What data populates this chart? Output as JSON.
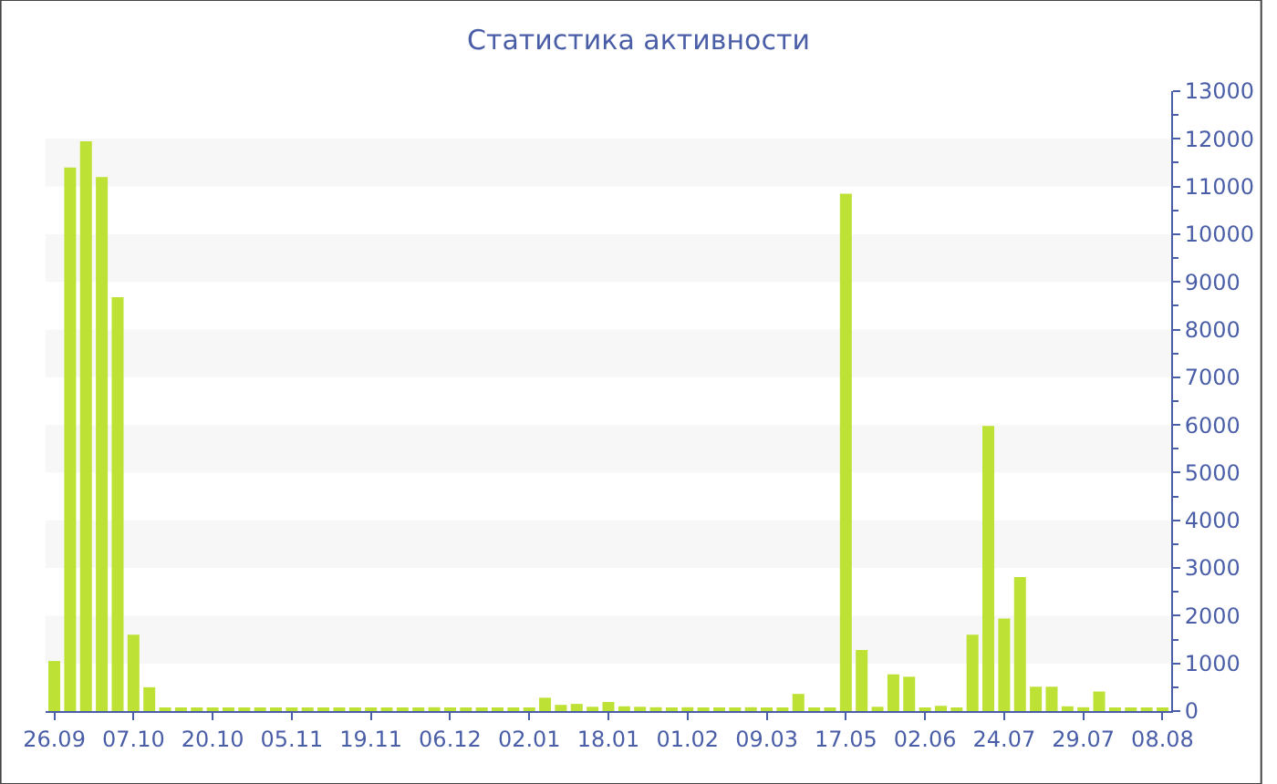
{
  "chart_data": {
    "type": "bar",
    "title": "Статистика активности",
    "color": "#bde134",
    "categories": [
      "26.09",
      null,
      null,
      null,
      null,
      "07.10",
      null,
      null,
      null,
      null,
      "20.10",
      null,
      null,
      null,
      null,
      "05.11",
      null,
      null,
      null,
      null,
      "19.11",
      null,
      null,
      null,
      null,
      "06.12",
      null,
      null,
      null,
      null,
      "02.01",
      null,
      null,
      null,
      null,
      "18.01",
      null,
      null,
      null,
      null,
      "01.02",
      null,
      null,
      null,
      null,
      "09.03",
      null,
      null,
      null,
      null,
      "17.05",
      null,
      null,
      null,
      null,
      "02.06",
      null,
      null,
      null,
      null,
      "24.07",
      null,
      null,
      null,
      null,
      "29.07",
      null,
      null,
      null,
      null,
      "08.08"
    ],
    "values": [
      1050,
      11400,
      11950,
      11200,
      8680,
      1600,
      500,
      40,
      40,
      40,
      40,
      40,
      40,
      40,
      40,
      40,
      40,
      40,
      40,
      40,
      40,
      40,
      40,
      40,
      80,
      40,
      40,
      40,
      70,
      70,
      70,
      280,
      130,
      150,
      90,
      190,
      100,
      90,
      80,
      70,
      80,
      40,
      40,
      40,
      80,
      50,
      40,
      360,
      40,
      40,
      10850,
      1280,
      90,
      770,
      720,
      50,
      110,
      50,
      1600,
      5980,
      1940,
      2810,
      510,
      510,
      100,
      80,
      410,
      60,
      40,
      40,
      50
    ],
    "ylim": [
      0,
      13000
    ],
    "yticks": [
      0,
      1000,
      2000,
      3000,
      4000,
      5000,
      6000,
      7000,
      8000,
      9000,
      10000,
      11000,
      12000,
      13000
    ],
    "bands": [
      {
        "axis": "y",
        "from": 1000,
        "to": 2000,
        "color": "#f7f7f7"
      },
      {
        "axis": "y",
        "from": 3000,
        "to": 4000,
        "color": "#f7f7f7"
      },
      {
        "axis": "y",
        "from": 5000,
        "to": 6000,
        "color": "#f7f7f7"
      },
      {
        "axis": "y",
        "from": 7000,
        "to": 8000,
        "color": "#f7f7f7"
      },
      {
        "axis": "y",
        "from": 9000,
        "to": 10000,
        "color": "#f7f7f7"
      },
      {
        "axis": "y",
        "from": 11000,
        "to": 12000,
        "color": "#f7f7f7"
      }
    ]
  }
}
